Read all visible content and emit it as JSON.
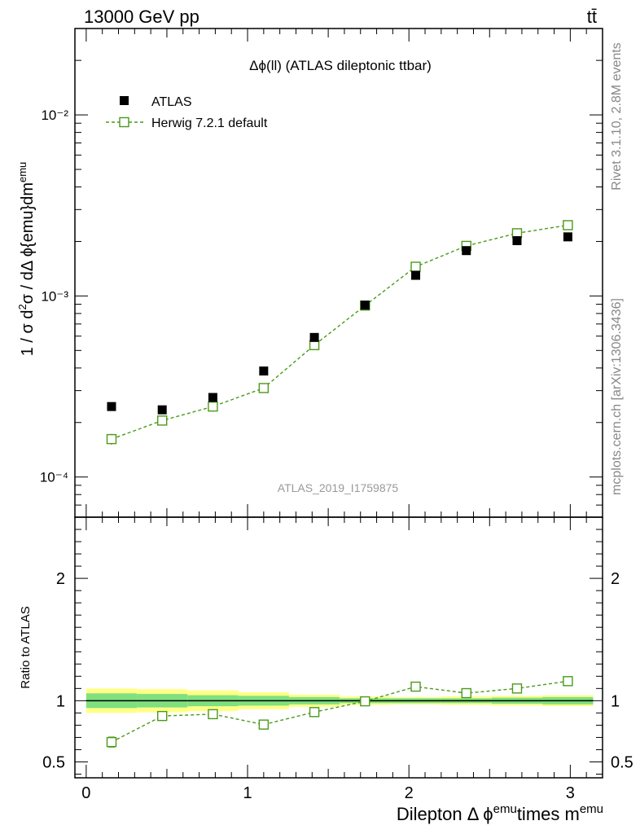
{
  "header": {
    "left": "13000 GeV pp",
    "right": "tt̄"
  },
  "side_labels": {
    "rivet": "Rivet 3.1.10,  2.8M events",
    "mcplots": "mcplots.cern.ch [arXiv:1306.3436]"
  },
  "chart_data": [
    {
      "type": "scatter",
      "title": "Δϕ(ll) (ATLAS dileptonic ttbar)",
      "watermark": "ATLAS_2019_I1759875",
      "ylabel": "1 / σ  d²σ / dΔ ϕ{emu}dm^emu",
      "yscale": "log",
      "ylim": [
        6e-05,
        0.03
      ],
      "xlim": [
        -0.07,
        3.2
      ],
      "legend_position": "top-left",
      "y_tick_labels": [
        "10⁻⁴",
        "10⁻³",
        "10⁻²"
      ],
      "series": [
        {
          "name": "ATLAS",
          "marker": "filled-square",
          "color": "#000000",
          "x": [
            0.157,
            0.471,
            0.785,
            1.1,
            1.414,
            1.728,
            2.042,
            2.356,
            2.67,
            2.985
          ],
          "y": [
            0.000245,
            0.000235,
            0.000275,
            0.000385,
            0.00059,
            0.00089,
            0.0013,
            0.00178,
            0.00202,
            0.00212
          ]
        },
        {
          "name": "Herwig 7.2.1 default",
          "marker": "open-square",
          "line": "dashed",
          "color": "#4a9a1a",
          "x": [
            0.157,
            0.471,
            0.785,
            1.1,
            1.414,
            1.728,
            2.042,
            2.356,
            2.67,
            2.985
          ],
          "y": [
            0.000162,
            0.000205,
            0.000245,
            0.00031,
            0.000535,
            0.000885,
            0.00145,
            0.00189,
            0.00222,
            0.00246
          ],
          "yerr": [
            1.1e-05,
            8e-06,
            7e-06,
            8e-06,
            1.4e-05,
            1.8e-05,
            2.2e-05,
            2.5e-05,
            2.8e-05,
            3e-05
          ]
        }
      ]
    },
    {
      "type": "scatter",
      "ylabel": "Ratio to ATLAS",
      "xlabel": "Dilepton Δ ϕ^emu times m^emu",
      "xlim": [
        -0.07,
        3.2
      ],
      "ylim": [
        0.37,
        2.5
      ],
      "x_ticks": [
        0,
        1,
        2,
        3
      ],
      "y_ticks": [
        0.5,
        1,
        2
      ],
      "reference_line": 1,
      "bins": [
        {
          "lo": 0.0,
          "hi": 0.314
        },
        {
          "lo": 0.314,
          "hi": 0.628
        },
        {
          "lo": 0.628,
          "hi": 0.942
        },
        {
          "lo": 0.942,
          "hi": 1.257
        },
        {
          "lo": 1.257,
          "hi": 1.571
        },
        {
          "lo": 1.571,
          "hi": 1.885
        },
        {
          "lo": 1.885,
          "hi": 2.199
        },
        {
          "lo": 2.199,
          "hi": 2.513
        },
        {
          "lo": 2.513,
          "hi": 2.827
        },
        {
          "lo": 2.827,
          "hi": 3.142
        }
      ],
      "band_stat": [
        0.06,
        0.055,
        0.045,
        0.04,
        0.03,
        0.02,
        0.02,
        0.02,
        0.025,
        0.03
      ],
      "band_total": [
        0.1,
        0.095,
        0.085,
        0.07,
        0.05,
        0.035,
        0.03,
        0.035,
        0.04,
        0.045
      ],
      "band_colors": {
        "total": "#ffff88",
        "stat": "#7fe07f"
      },
      "series": [
        {
          "name": "Herwig 7.2.1 default",
          "color": "#4a9a1a",
          "x": [
            0.157,
            0.471,
            0.785,
            1.1,
            1.414,
            1.728,
            2.042,
            2.356,
            2.67,
            2.985
          ],
          "y": [
            0.662,
            0.875,
            0.89,
            0.805,
            0.907,
            0.995,
            1.115,
            1.062,
            1.1,
            1.16
          ],
          "yerr": [
            0.04,
            0.035,
            0.03,
            0.025,
            0.02,
            0.015,
            0.015,
            0.015,
            0.015,
            0.015
          ]
        }
      ]
    }
  ]
}
